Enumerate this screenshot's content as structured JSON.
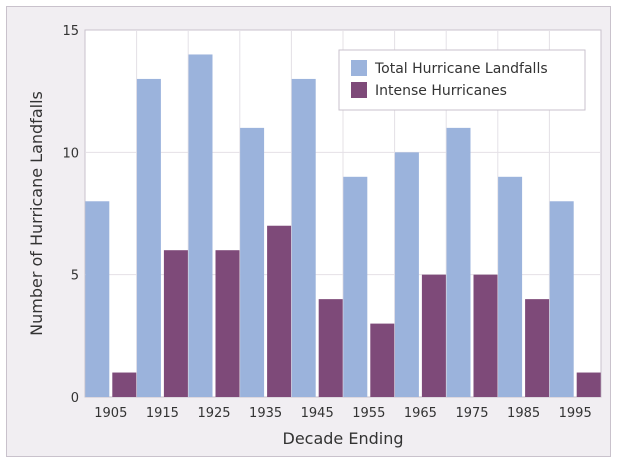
{
  "chart_data": {
    "type": "bar",
    "categories": [
      "1905",
      "1915",
      "1925",
      "1935",
      "1945",
      "1955",
      "1965",
      "1975",
      "1985",
      "1995"
    ],
    "series": [
      {
        "name": "Total Hurricane Landfalls",
        "color": "#9bb3dc",
        "values": [
          8,
          13,
          14,
          11,
          13,
          9,
          10,
          11,
          9,
          8
        ]
      },
      {
        "name": "Intense Hurricanes",
        "color": "#7e4a79",
        "values": [
          1,
          6,
          6,
          7,
          4,
          3,
          5,
          5,
          4,
          1
        ]
      }
    ],
    "xlabel": "Decade Ending",
    "ylabel": "Number of Hurricane Landfalls",
    "ylim": [
      0,
      15
    ],
    "yticks": [
      "0",
      "5",
      "10",
      "15"
    ],
    "grid": true,
    "legend_position": "top-right"
  }
}
